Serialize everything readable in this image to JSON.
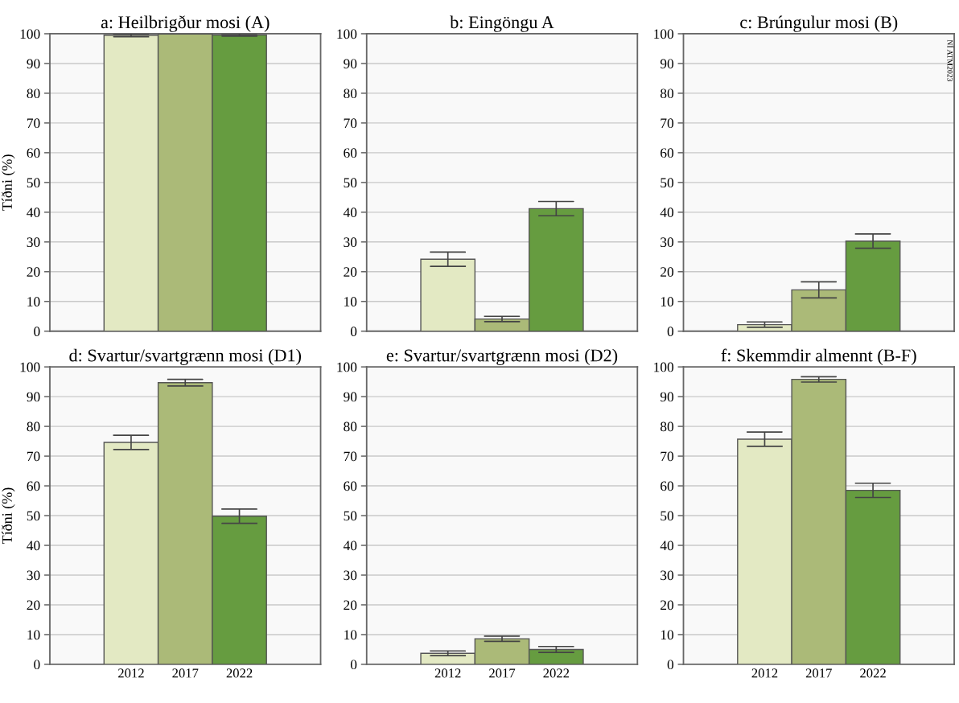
{
  "chart_data": [
    {
      "type": "bar",
      "title": "a: Heilbrigður mosi (A)",
      "ylabel": "Tíðni (%)",
      "categories": [
        "2012",
        "2017",
        "2022"
      ],
      "values": [
        99.5,
        99.9,
        99.6
      ],
      "errors": [
        0.5,
        null,
        0.4
      ],
      "colors": [
        "#e3e9c3",
        "#abba78",
        "#669c40"
      ],
      "ylim": [
        0,
        100
      ],
      "yticks": [
        0,
        10,
        20,
        30,
        40,
        50,
        60,
        70,
        80,
        90,
        100
      ],
      "grid": "y",
      "tick_labels": "y"
    },
    {
      "type": "bar",
      "title": "b: Eingöngu A",
      "categories": [
        "2012",
        "2017",
        "2022"
      ],
      "values": [
        24.2,
        4.1,
        41.2
      ],
      "errors": [
        2.4,
        0.9,
        2.4
      ],
      "colors": [
        "#e3e9c3",
        "#abba78",
        "#669c40"
      ],
      "ylim": [
        0,
        100
      ],
      "yticks": [
        0,
        10,
        20,
        30,
        40,
        50,
        60,
        70,
        80,
        90,
        100
      ],
      "grid": "y",
      "tick_labels": "y"
    },
    {
      "type": "bar",
      "title": "c: Brúngulur mosi (B)",
      "categories": [
        "2012",
        "2017",
        "2022"
      ],
      "values": [
        2.2,
        13.9,
        30.3
      ],
      "errors": [
        0.9,
        2.7,
        2.4
      ],
      "colors": [
        "#e3e9c3",
        "#abba78",
        "#669c40"
      ],
      "ylim": [
        0,
        100
      ],
      "yticks": [
        0,
        10,
        20,
        30,
        40,
        50,
        60,
        70,
        80,
        90,
        100
      ],
      "grid": "y",
      "tick_labels": "y",
      "annotations": [
        "NÍ ATM2023"
      ]
    },
    {
      "type": "bar",
      "title": "d: Svartur/svartgrænn mosi (D1)",
      "ylabel": "Tíðni (%)",
      "categories": [
        "2012",
        "2017",
        "2022"
      ],
      "values": [
        74.6,
        94.7,
        49.8
      ],
      "errors": [
        2.4,
        1.1,
        2.4
      ],
      "colors": [
        "#e3e9c3",
        "#abba78",
        "#669c40"
      ],
      "ylim": [
        0,
        100
      ],
      "yticks": [
        0,
        10,
        20,
        30,
        40,
        50,
        60,
        70,
        80,
        90,
        100
      ],
      "grid": "y"
    },
    {
      "type": "bar",
      "title": "e: Svartur/svartgrænn mosi (D2)",
      "categories": [
        "2012",
        "2017",
        "2022"
      ],
      "values": [
        3.7,
        8.6,
        5.0
      ],
      "errors": [
        0.8,
        0.9,
        1.0
      ],
      "colors": [
        "#e3e9c3",
        "#abba78",
        "#669c40"
      ],
      "ylim": [
        0,
        100
      ],
      "yticks": [
        0,
        10,
        20,
        30,
        40,
        50,
        60,
        70,
        80,
        90,
        100
      ],
      "grid": "y"
    },
    {
      "type": "bar",
      "title": "f: Skemmdir almennt (B-F)",
      "categories": [
        "2012",
        "2017",
        "2022"
      ],
      "values": [
        75.7,
        95.8,
        58.5
      ],
      "errors": [
        2.4,
        0.9,
        2.4
      ],
      "colors": [
        "#e3e9c3",
        "#abba78",
        "#669c40"
      ],
      "ylim": [
        0,
        100
      ],
      "yticks": [
        0,
        10,
        20,
        30,
        40,
        50,
        60,
        70,
        80,
        90,
        100
      ],
      "grid": "y"
    }
  ]
}
